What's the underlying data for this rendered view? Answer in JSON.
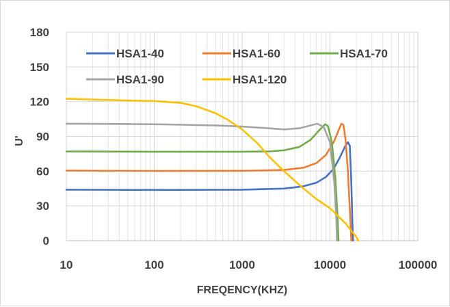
{
  "chart_data": {
    "type": "line",
    "title": "",
    "xlabel": "FREQENCY(KHZ)",
    "ylabel": "U'",
    "x_scale": "log",
    "xlim": [
      10,
      100000
    ],
    "ylim": [
      0,
      180
    ],
    "x_ticks": [
      10,
      100,
      1000,
      10000,
      100000
    ],
    "x_tick_labels": [
      "10",
      "100",
      "1000",
      "10000",
      "100000"
    ],
    "y_ticks": [
      0,
      30,
      60,
      90,
      120,
      150,
      180
    ],
    "y_tick_labels": [
      "0",
      "30",
      "60",
      "90",
      "120",
      "150",
      "180"
    ],
    "grid": "major horizontal and minor vertical (log)",
    "legend_position": "top",
    "series": [
      {
        "name": "HSA1-40",
        "color": "#4472c4",
        "points": [
          [
            10,
            44
          ],
          [
            100,
            43.8
          ],
          [
            1000,
            44
          ],
          [
            3000,
            45
          ],
          [
            5000,
            47
          ],
          [
            7000,
            50
          ],
          [
            9000,
            55
          ],
          [
            11000,
            62
          ],
          [
            13000,
            72
          ],
          [
            15000,
            82
          ],
          [
            16000,
            85
          ],
          [
            16800,
            82
          ],
          [
            17500,
            50
          ],
          [
            18000,
            15
          ],
          [
            18300,
            0
          ]
        ]
      },
      {
        "name": "HSA1-60",
        "color": "#ed7d31",
        "points": [
          [
            10,
            60.5
          ],
          [
            100,
            60.2
          ],
          [
            1000,
            60.3
          ],
          [
            3000,
            61
          ],
          [
            5000,
            63
          ],
          [
            7000,
            67
          ],
          [
            9000,
            74
          ],
          [
            11000,
            85
          ],
          [
            12500,
            95
          ],
          [
            13500,
            101
          ],
          [
            14200,
            100
          ],
          [
            15000,
            88
          ],
          [
            16000,
            60
          ],
          [
            17000,
            20
          ],
          [
            17500,
            0
          ]
        ]
      },
      {
        "name": "HSA1-70",
        "color": "#70ad47",
        "points": [
          [
            10,
            77
          ],
          [
            100,
            76.8
          ],
          [
            1000,
            76.8
          ],
          [
            2000,
            77
          ],
          [
            3000,
            78
          ],
          [
            4500,
            81
          ],
          [
            6000,
            87
          ],
          [
            7500,
            95
          ],
          [
            8800,
            100.5
          ],
          [
            9500,
            99
          ],
          [
            10500,
            85
          ],
          [
            11500,
            55
          ],
          [
            12200,
            20
          ],
          [
            12500,
            0
          ]
        ]
      },
      {
        "name": "HSA1-90",
        "color": "#a5a5a5",
        "points": [
          [
            10,
            101
          ],
          [
            100,
            100.5
          ],
          [
            500,
            99.5
          ],
          [
            1000,
            98.5
          ],
          [
            2000,
            97
          ],
          [
            3000,
            96
          ],
          [
            4500,
            97
          ],
          [
            6000,
            99.5
          ],
          [
            7200,
            101
          ],
          [
            8500,
            98
          ],
          [
            10000,
            85
          ],
          [
            11200,
            50
          ],
          [
            11800,
            20
          ],
          [
            12000,
            0
          ]
        ]
      },
      {
        "name": "HSA1-120",
        "color": "#ffc000",
        "points": [
          [
            10,
            122.5
          ],
          [
            50,
            121
          ],
          [
            100,
            120.5
          ],
          [
            200,
            119
          ],
          [
            300,
            116
          ],
          [
            500,
            110
          ],
          [
            700,
            104
          ],
          [
            1000,
            96
          ],
          [
            1500,
            84
          ],
          [
            2000,
            73
          ],
          [
            3000,
            60
          ],
          [
            5000,
            45
          ],
          [
            7000,
            36
          ],
          [
            10000,
            28
          ],
          [
            15000,
            15
          ],
          [
            20000,
            3
          ],
          [
            21000,
            0
          ]
        ]
      }
    ]
  }
}
